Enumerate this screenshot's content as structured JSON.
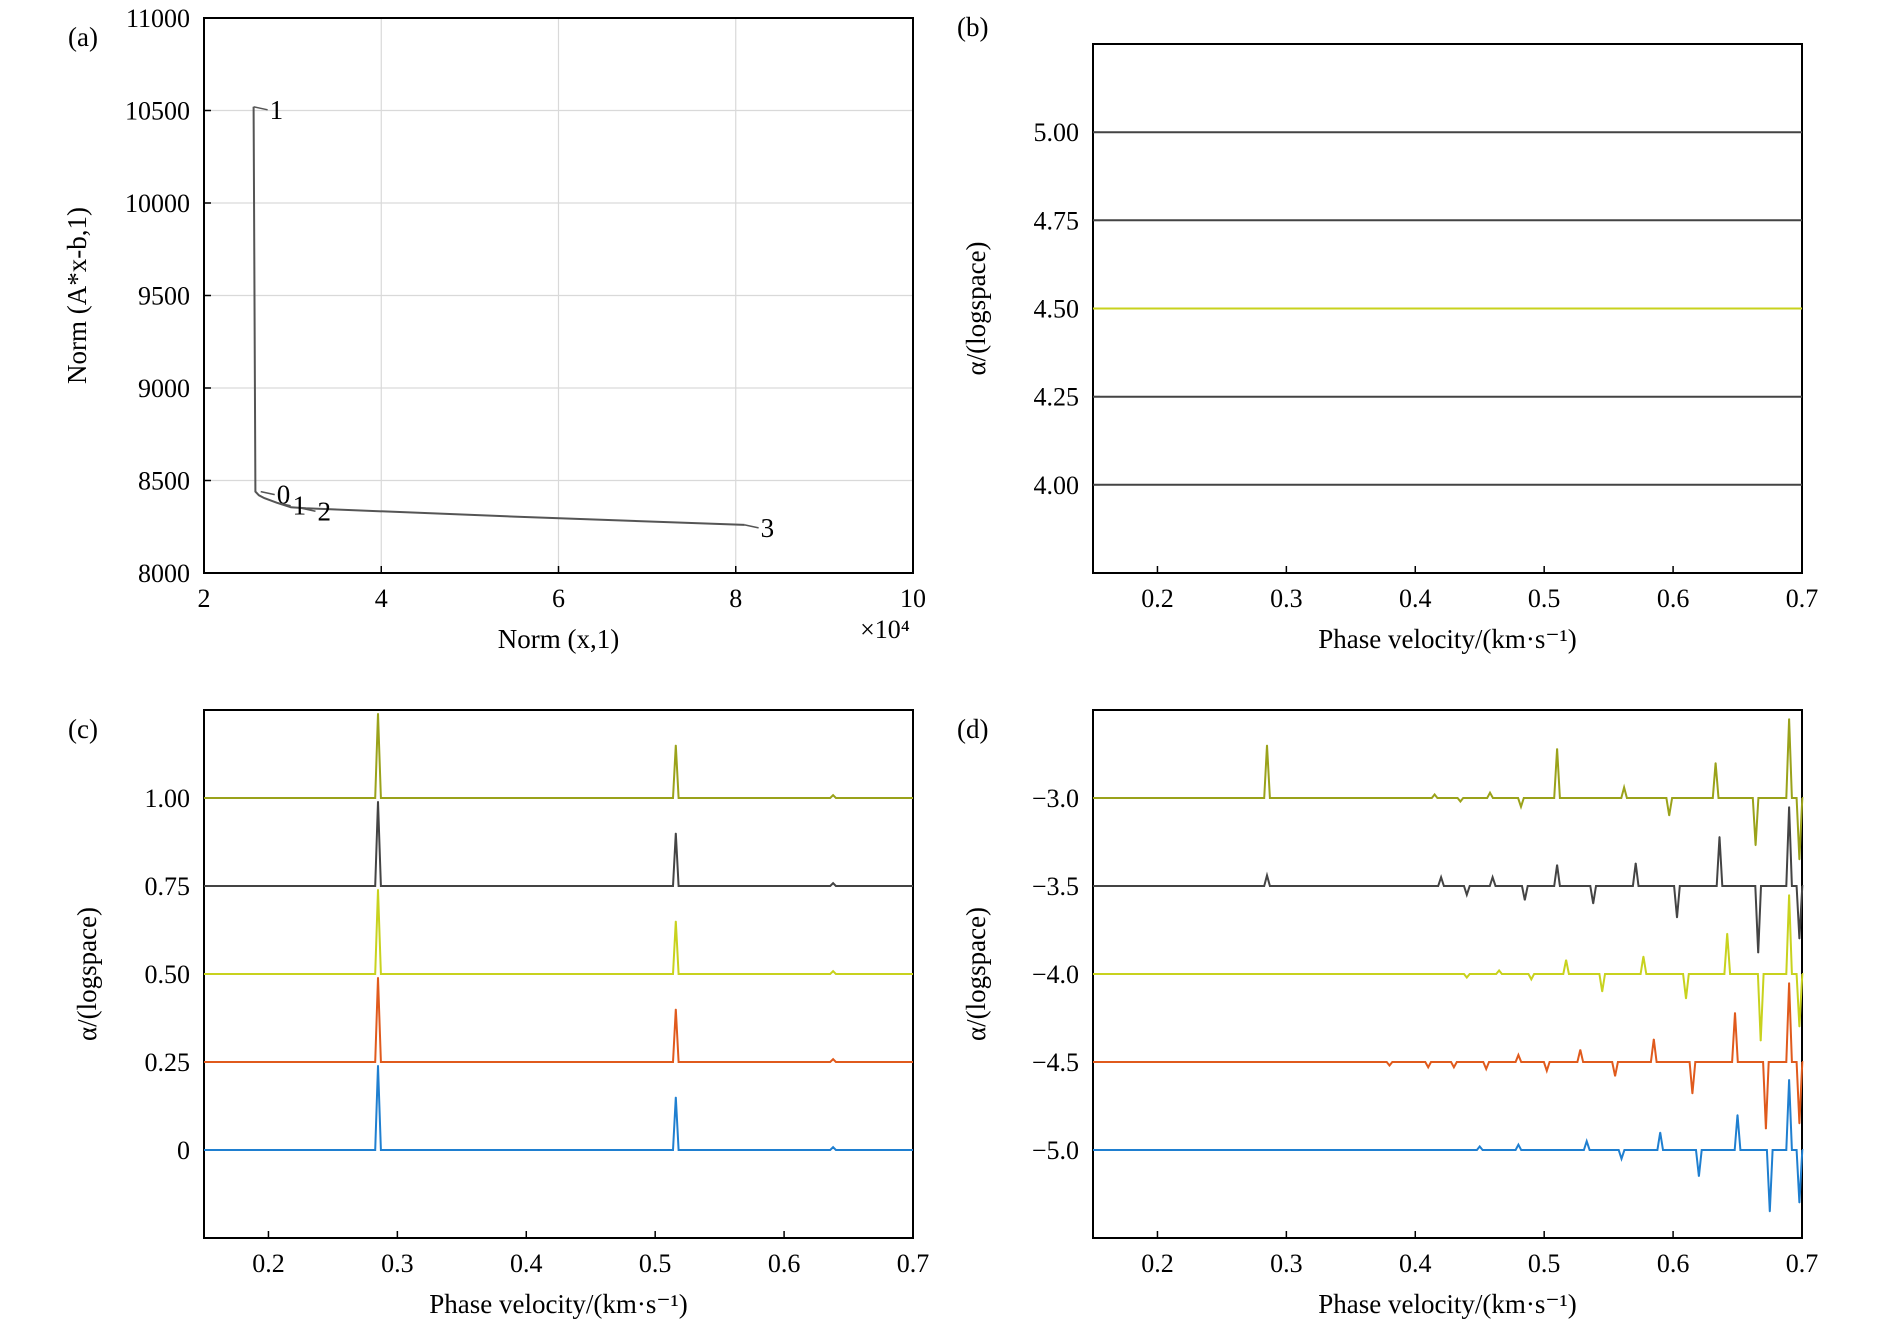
{
  "chart_data": [
    {
      "panel": "(a)",
      "type": "line",
      "xlabel": "Norm (x,1)",
      "ylabel": "Norm (A*x-b,1)",
      "x_multiplier": "×10⁴",
      "xlim": [
        2,
        10
      ],
      "ylim": [
        8000,
        11000
      ],
      "xticks": [
        2,
        4,
        6,
        8,
        10
      ],
      "yticks": [
        8000,
        8500,
        9000,
        9500,
        10000,
        10500,
        11000
      ],
      "grid": true,
      "color": "#555555",
      "series": [
        {
          "x": [
            2.56,
            2.58,
            2.62,
            2.68,
            2.82,
            2.98,
            3.15,
            5.5,
            8.1
          ],
          "y": [
            10520,
            8440,
            8420,
            8405,
            8380,
            8355,
            8350,
            8305,
            8260
          ]
        }
      ],
      "point_labels": [
        {
          "text": "1",
          "x": 2.56,
          "y": 10520
        },
        {
          "text": "0",
          "x": 2.64,
          "y": 8440
        },
        {
          "text": "1",
          "x": 2.82,
          "y": 8380
        },
        {
          "text": "2",
          "x": 3.1,
          "y": 8350
        },
        {
          "text": "3",
          "x": 8.1,
          "y": 8260
        }
      ]
    },
    {
      "panel": "(b)",
      "type": "line",
      "xlabel": "Phase velocity/(km·s⁻¹)",
      "ylabel": "α/(logspace)",
      "xlim": [
        0.15,
        0.7
      ],
      "ylim": [
        3.75,
        5.25
      ],
      "xticks": [
        0.2,
        0.3,
        0.4,
        0.5,
        0.6,
        0.7
      ],
      "xtick_labels": [
        "0.2",
        "0.3",
        "0.4",
        "0.5",
        "0.6",
        "0.7"
      ],
      "yticks": [
        4.0,
        4.25,
        4.5,
        4.75,
        5.0
      ],
      "ytick_labels": [
        "4.00",
        "4.25",
        "4.50",
        "4.75",
        "5.00"
      ],
      "grid": false,
      "series": [
        {
          "baseline": 4.0,
          "color": "#444444",
          "peaks": []
        },
        {
          "baseline": 4.25,
          "color": "#444444",
          "peaks": []
        },
        {
          "baseline": 4.5,
          "color": "#c8d21e",
          "peaks": []
        },
        {
          "baseline": 4.75,
          "color": "#444444",
          "peaks": []
        },
        {
          "baseline": 5.0,
          "color": "#444444",
          "peaks": []
        }
      ]
    },
    {
      "panel": "(c)",
      "type": "line",
      "xlabel": "Phase velocity/(km·s⁻¹)",
      "ylabel": "α/(logspace)",
      "xlim": [
        0.15,
        0.7
      ],
      "ylim": [
        -0.25,
        1.25
      ],
      "xticks": [
        0.2,
        0.3,
        0.4,
        0.5,
        0.6,
        0.7
      ],
      "xtick_labels": [
        "0.2",
        "0.3",
        "0.4",
        "0.5",
        "0.6",
        "0.7"
      ],
      "yticks": [
        0,
        0.25,
        0.5,
        0.75,
        1.0
      ],
      "ytick_labels": [
        "0",
        "0.25",
        "0.50",
        "0.75",
        "1.00"
      ],
      "grid": false,
      "series": [
        {
          "baseline": 0.0,
          "color": "#1f7fd0",
          "peaks": [
            [
              0.285,
              0.24
            ],
            [
              0.516,
              0.15
            ],
            [
              0.638,
              0.008
            ]
          ]
        },
        {
          "baseline": 0.25,
          "color": "#e05a1c",
          "peaks": [
            [
              0.285,
              0.24
            ],
            [
              0.516,
              0.15
            ],
            [
              0.638,
              0.008
            ]
          ]
        },
        {
          "baseline": 0.5,
          "color": "#c8d21e",
          "peaks": [
            [
              0.285,
              0.24
            ],
            [
              0.516,
              0.15
            ],
            [
              0.638,
              0.008
            ]
          ]
        },
        {
          "baseline": 0.75,
          "color": "#444444",
          "peaks": [
            [
              0.285,
              0.24
            ],
            [
              0.516,
              0.15
            ],
            [
              0.638,
              0.008
            ]
          ]
        },
        {
          "baseline": 1.0,
          "color": "#9aa21a",
          "peaks": [
            [
              0.285,
              0.24
            ],
            [
              0.516,
              0.15
            ],
            [
              0.638,
              0.008
            ]
          ]
        }
      ]
    },
    {
      "panel": "(d)",
      "type": "line",
      "xlabel": "Phase velocity/(km·s⁻¹)",
      "ylabel": "α/(logspace)",
      "xlim": [
        0.15,
        0.7
      ],
      "ylim": [
        -5.5,
        -2.5
      ],
      "xticks": [
        0.2,
        0.3,
        0.4,
        0.5,
        0.6,
        0.7
      ],
      "xtick_labels": [
        "0.2",
        "0.3",
        "0.4",
        "0.5",
        "0.6",
        "0.7"
      ],
      "yticks": [
        -5.0,
        -4.5,
        -4.0,
        -3.5,
        -3.0
      ],
      "ytick_labels": [
        "−5.0",
        "−4.5",
        "−4.0",
        "−3.5",
        "−3.0"
      ],
      "grid": false,
      "series": [
        {
          "baseline": -5.0,
          "color": "#1f7fd0",
          "peaks": [
            [
              0.45,
              0.02
            ],
            [
              0.48,
              0.03
            ],
            [
              0.533,
              0.05
            ],
            [
              0.56,
              -0.05
            ],
            [
              0.59,
              0.1
            ],
            [
              0.62,
              -0.15
            ],
            [
              0.65,
              0.2
            ],
            [
              0.675,
              -0.35
            ],
            [
              0.69,
              0.4
            ],
            [
              0.698,
              -0.3
            ]
          ]
        },
        {
          "baseline": -4.5,
          "color": "#e05a1c",
          "peaks": [
            [
              0.38,
              -0.02
            ],
            [
              0.41,
              -0.03
            ],
            [
              0.43,
              -0.03
            ],
            [
              0.455,
              -0.04
            ],
            [
              0.48,
              0.04
            ],
            [
              0.502,
              -0.05
            ],
            [
              0.528,
              0.07
            ],
            [
              0.555,
              -0.08
            ],
            [
              0.585,
              0.13
            ],
            [
              0.615,
              -0.18
            ],
            [
              0.648,
              0.28
            ],
            [
              0.672,
              -0.38
            ],
            [
              0.69,
              0.45
            ],
            [
              0.698,
              -0.35
            ]
          ]
        },
        {
          "baseline": -4.0,
          "color": "#c8d21e",
          "peaks": [
            [
              0.44,
              -0.02
            ],
            [
              0.465,
              0.02
            ],
            [
              0.49,
              -0.03
            ],
            [
              0.517,
              0.08
            ],
            [
              0.545,
              -0.1
            ],
            [
              0.577,
              0.1
            ],
            [
              0.61,
              -0.14
            ],
            [
              0.642,
              0.23
            ],
            [
              0.668,
              -0.38
            ],
            [
              0.69,
              0.45
            ],
            [
              0.698,
              -0.3
            ]
          ]
        },
        {
          "baseline": -3.5,
          "color": "#444444",
          "peaks": [
            [
              0.285,
              0.06
            ],
            [
              0.42,
              0.05
            ],
            [
              0.44,
              -0.05
            ],
            [
              0.46,
              0.05
            ],
            [
              0.485,
              -0.08
            ],
            [
              0.51,
              0.12
            ],
            [
              0.538,
              -0.1
            ],
            [
              0.571,
              0.13
            ],
            [
              0.603,
              -0.18
            ],
            [
              0.636,
              0.28
            ],
            [
              0.666,
              -0.38
            ],
            [
              0.69,
              0.45
            ],
            [
              0.698,
              -0.3
            ]
          ]
        },
        {
          "baseline": -3.0,
          "color": "#9aa21a",
          "peaks": [
            [
              0.285,
              0.3
            ],
            [
              0.415,
              0.02
            ],
            [
              0.435,
              -0.02
            ],
            [
              0.458,
              0.03
            ],
            [
              0.482,
              -0.05
            ],
            [
              0.51,
              0.28
            ],
            [
              0.562,
              0.06
            ],
            [
              0.597,
              -0.1
            ],
            [
              0.633,
              0.2
            ],
            [
              0.664,
              -0.27
            ],
            [
              0.69,
              0.45
            ],
            [
              0.698,
              -0.35
            ]
          ]
        }
      ]
    }
  ]
}
